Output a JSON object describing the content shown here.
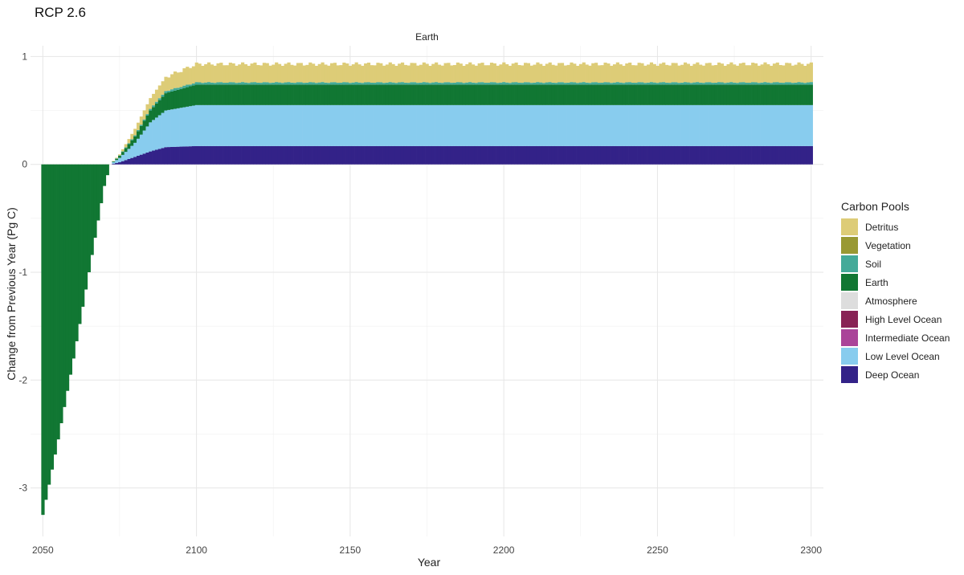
{
  "chart_data": {
    "type": "bar",
    "title": "RCP 2.6",
    "facet": "Earth",
    "xlabel": "Year",
    "ylabel": "Change from Previous Year (Pg C)",
    "xlim": [
      2046,
      2304
    ],
    "ylim": [
      -3.45,
      1.1
    ],
    "x_ticks": [
      2050,
      2100,
      2150,
      2200,
      2250,
      2300
    ],
    "y_ticks": [
      -3,
      -2,
      -1,
      0,
      1
    ],
    "grid": true,
    "legend": {
      "title": "Carbon Pools",
      "placement": "right",
      "entries": [
        {
          "name": "Detritus",
          "color": "#DDCC77"
        },
        {
          "name": "Vegetation",
          "color": "#999933"
        },
        {
          "name": "Soil",
          "color": "#44AA99"
        },
        {
          "name": "Earth",
          "color": "#117733"
        },
        {
          "name": "Atmosphere",
          "color": "#DDDDDD"
        },
        {
          "name": "High Level Ocean",
          "color": "#882255"
        },
        {
          "name": "Intermediate Ocean",
          "color": "#AA4499"
        },
        {
          "name": "Low Level Ocean",
          "color": "#88CCEE"
        },
        {
          "name": "Deep Ocean",
          "color": "#332288"
        }
      ]
    },
    "series_breakpoints": {
      "years": [
        2050,
        2055,
        2060,
        2065,
        2070,
        2072,
        2075,
        2080,
        2085,
        2090,
        2100,
        2300
      ],
      "Earth": [
        -3.25,
        -2.55,
        -1.8,
        -1.0,
        -0.2,
        0.0,
        0.02,
        0.06,
        0.11,
        0.16,
        0.19,
        0.19
      ],
      "Deep Ocean": [
        0,
        0,
        0,
        0,
        0,
        0,
        0.02,
        0.07,
        0.12,
        0.16,
        0.17,
        0.17
      ],
      "Low Level Ocean": [
        0,
        0,
        0,
        0,
        0,
        0,
        0.04,
        0.13,
        0.27,
        0.34,
        0.38,
        0.38
      ],
      "Soil": [
        0,
        0,
        0,
        0,
        0,
        0,
        0.003,
        0.01,
        0.015,
        0.02,
        0.02,
        0.02
      ],
      "Detritus": [
        0,
        0,
        0,
        0,
        0,
        0,
        0.01,
        0.06,
        0.1,
        0.13,
        0.17,
        0.17
      ]
    }
  }
}
